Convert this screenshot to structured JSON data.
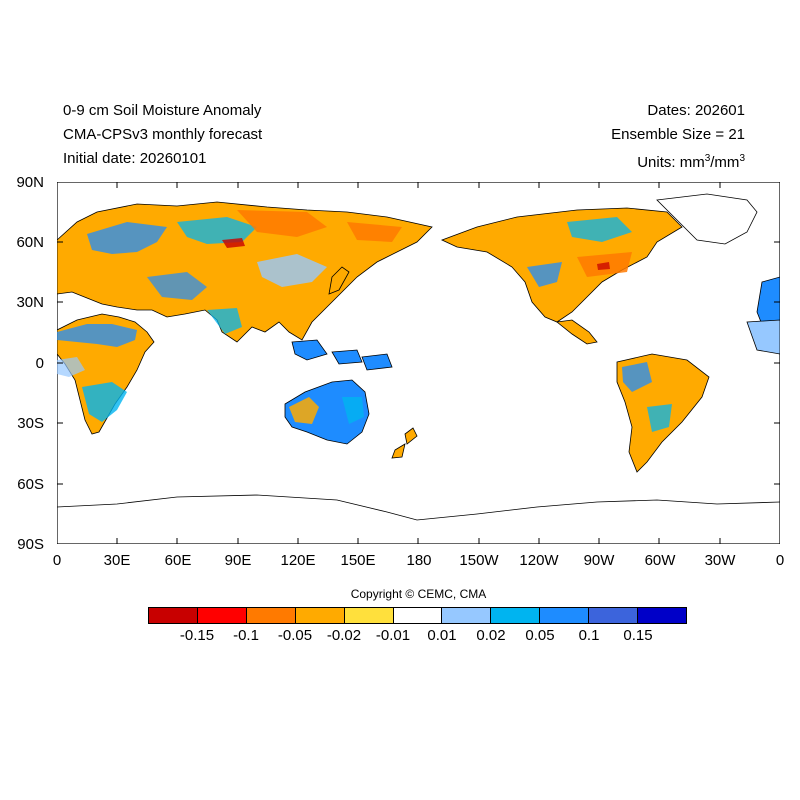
{
  "header": {
    "title": "0-9 cm Soil Moisture Anomaly",
    "model": "CMA-CPSv3 monthly forecast",
    "initial_date": "Initial date: 20260101",
    "dates": "Dates: 202601",
    "ensemble": "Ensemble Size = 21",
    "units_prefix": "Units: mm",
    "units_exp1": "3",
    "units_mid": "/mm",
    "units_exp2": "3"
  },
  "axes": {
    "y_ticks": [
      "90N",
      "60N",
      "30N",
      "0",
      "30S",
      "60S",
      "90S"
    ],
    "x_ticks": [
      "0",
      "30E",
      "60E",
      "90E",
      "120E",
      "150E",
      "180",
      "150W",
      "120W",
      "90W",
      "60W",
      "30W",
      "0"
    ]
  },
  "copyright": "Copyright © CEMC, CMA",
  "colorbar": {
    "colors": [
      "#c80000",
      "#ff0000",
      "#ff7a00",
      "#ffaa00",
      "#ffe03c",
      "#ffffff",
      "#96c8ff",
      "#00b4f0",
      "#1e8cff",
      "#3c64dc",
      "#0000c8"
    ],
    "labels": [
      "-0.15",
      "-0.1",
      "-0.05",
      "-0.02",
      "-0.01",
      "0.01",
      "0.02",
      "0.05",
      "0.1",
      "0.15"
    ]
  },
  "map_colors": {
    "dry_strong": "#ff7a00",
    "dry": "#ffaa00",
    "wet": "#1e8cff",
    "wet_light": "#00b4f0",
    "wet_pale": "#96c8ff",
    "dry_extreme": "#c80000"
  }
}
